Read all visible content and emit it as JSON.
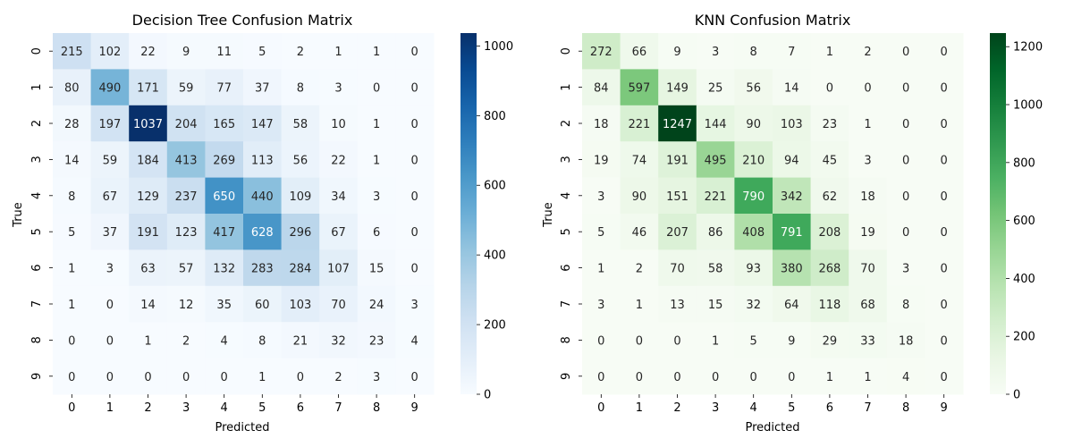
{
  "chart_data": [
    {
      "type": "heatmap",
      "title": "Decision Tree Confusion Matrix",
      "xlabel": "Predicted",
      "ylabel": "True",
      "x_labels": [
        "0",
        "1",
        "2",
        "3",
        "4",
        "5",
        "6",
        "7",
        "8",
        "9"
      ],
      "y_labels": [
        "0",
        "1",
        "2",
        "3",
        "4",
        "5",
        "6",
        "7",
        "8",
        "9"
      ],
      "colormap": "Blues",
      "color_range": [
        0,
        1037
      ],
      "colorbar_ticks": [
        "0",
        "200",
        "400",
        "600",
        "800",
        "1000"
      ],
      "matrix": [
        [
          215,
          102,
          22,
          9,
          11,
          5,
          2,
          1,
          1,
          0
        ],
        [
          80,
          490,
          171,
          59,
          77,
          37,
          8,
          3,
          0,
          0
        ],
        [
          28,
          197,
          1037,
          204,
          165,
          147,
          58,
          10,
          1,
          0
        ],
        [
          14,
          59,
          184,
          413,
          269,
          113,
          56,
          22,
          1,
          0
        ],
        [
          8,
          67,
          129,
          237,
          650,
          440,
          109,
          34,
          3,
          0
        ],
        [
          5,
          37,
          191,
          123,
          417,
          628,
          296,
          67,
          6,
          0
        ],
        [
          1,
          3,
          63,
          57,
          132,
          283,
          284,
          107,
          15,
          0
        ],
        [
          1,
          0,
          14,
          12,
          35,
          60,
          103,
          70,
          24,
          3
        ],
        [
          0,
          0,
          1,
          2,
          4,
          8,
          21,
          32,
          23,
          4
        ],
        [
          0,
          0,
          0,
          0,
          0,
          1,
          0,
          2,
          3,
          0
        ]
      ]
    },
    {
      "type": "heatmap",
      "title": "KNN Confusion Matrix",
      "xlabel": "Predicted",
      "ylabel": "True",
      "x_labels": [
        "0",
        "1",
        "2",
        "3",
        "4",
        "5",
        "6",
        "7",
        "8",
        "9"
      ],
      "y_labels": [
        "0",
        "1",
        "2",
        "3",
        "4",
        "5",
        "6",
        "7",
        "8",
        "9"
      ],
      "colormap": "Greens",
      "color_range": [
        0,
        1247
      ],
      "colorbar_ticks": [
        "0",
        "200",
        "400",
        "600",
        "800",
        "1000",
        "1200"
      ],
      "matrix": [
        [
          272,
          66,
          9,
          3,
          8,
          7,
          1,
          2,
          0,
          0
        ],
        [
          84,
          597,
          149,
          25,
          56,
          14,
          0,
          0,
          0,
          0
        ],
        [
          18,
          221,
          1247,
          144,
          90,
          103,
          23,
          1,
          0,
          0
        ],
        [
          19,
          74,
          191,
          495,
          210,
          94,
          45,
          3,
          0,
          0
        ],
        [
          3,
          90,
          151,
          221,
          790,
          342,
          62,
          18,
          0,
          0
        ],
        [
          5,
          46,
          207,
          86,
          408,
          791,
          208,
          19,
          0,
          0
        ],
        [
          1,
          2,
          70,
          58,
          93,
          380,
          268,
          70,
          3,
          0
        ],
        [
          3,
          1,
          13,
          15,
          32,
          64,
          118,
          68,
          8,
          0
        ],
        [
          0,
          0,
          0,
          1,
          5,
          9,
          29,
          33,
          18,
          0
        ],
        [
          0,
          0,
          0,
          0,
          0,
          0,
          1,
          1,
          4,
          0
        ]
      ]
    }
  ]
}
